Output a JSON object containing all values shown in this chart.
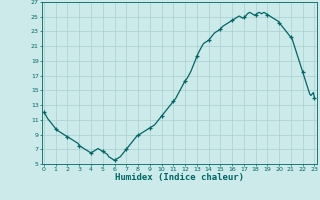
{
  "xlabel": "Humidex (Indice chaleur)",
  "ylabel": "",
  "bg_color": "#cceaea",
  "plot_bg_color": "#cceaea",
  "grid_color": "#aacece",
  "line_color": "#006666",
  "marker_color": "#006666",
  "xlim": [
    0,
    23
  ],
  "ylim": [
    5,
    27
  ],
  "yticks": [
    5,
    7,
    9,
    11,
    13,
    15,
    17,
    19,
    21,
    23,
    25,
    27
  ],
  "xticks": [
    0,
    1,
    2,
    3,
    4,
    5,
    6,
    7,
    8,
    9,
    10,
    11,
    12,
    13,
    14,
    15,
    16,
    17,
    18,
    19,
    20,
    21,
    22,
    23
  ],
  "humidex_x": [
    0,
    0.1,
    0.2,
    0.3,
    0.4,
    0.5,
    0.6,
    0.7,
    0.8,
    0.9,
    1.0,
    1.1,
    1.2,
    1.3,
    1.4,
    1.5,
    1.6,
    1.7,
    1.8,
    1.9,
    2.0,
    2.1,
    2.2,
    2.3,
    2.4,
    2.5,
    2.6,
    2.7,
    2.8,
    2.9,
    3.0,
    3.1,
    3.2,
    3.3,
    3.4,
    3.5,
    3.6,
    3.7,
    3.8,
    3.9,
    4.0,
    4.1,
    4.2,
    4.3,
    4.4,
    4.5,
    4.6,
    4.7,
    4.8,
    4.9,
    5.0,
    5.1,
    5.2,
    5.3,
    5.4,
    5.5,
    5.6,
    5.7,
    5.8,
    5.9,
    6.0,
    6.1,
    6.2,
    6.3,
    6.4,
    6.5,
    6.6,
    6.7,
    6.8,
    6.9,
    7.0,
    7.1,
    7.2,
    7.3,
    7.4,
    7.5,
    7.6,
    7.7,
    7.8,
    7.9,
    8.0,
    8.1,
    8.2,
    8.3,
    8.4,
    8.5,
    8.6,
    8.7,
    8.8,
    8.9,
    9.0,
    9.1,
    9.2,
    9.3,
    9.4,
    9.5,
    9.6,
    9.7,
    9.8,
    9.9,
    10.0,
    10.1,
    10.2,
    10.3,
    10.4,
    10.5,
    10.6,
    10.7,
    10.8,
    10.9,
    11.0,
    11.1,
    11.2,
    11.3,
    11.4,
    11.5,
    11.6,
    11.7,
    11.8,
    11.9,
    12.0,
    12.1,
    12.2,
    12.3,
    12.4,
    12.5,
    12.6,
    12.7,
    12.8,
    12.9,
    13.0,
    13.1,
    13.2,
    13.3,
    13.4,
    13.5,
    13.6,
    13.7,
    13.8,
    13.9,
    14.0,
    14.1,
    14.2,
    14.3,
    14.4,
    14.5,
    14.6,
    14.7,
    14.8,
    14.9,
    15.0,
    15.1,
    15.2,
    15.3,
    15.4,
    15.5,
    15.6,
    15.7,
    15.8,
    15.9,
    16.0,
    16.1,
    16.2,
    16.3,
    16.4,
    16.5,
    16.6,
    16.7,
    16.8,
    16.9,
    17.0,
    17.1,
    17.2,
    17.3,
    17.4,
    17.5,
    17.6,
    17.7,
    17.8,
    17.9,
    18.0,
    18.1,
    18.2,
    18.3,
    18.4,
    18.5,
    18.6,
    18.7,
    18.8,
    18.9,
    19.0,
    19.1,
    19.2,
    19.3,
    19.4,
    19.5,
    19.6,
    19.7,
    19.8,
    19.9,
    20.0,
    20.1,
    20.2,
    20.3,
    20.4,
    20.5,
    20.6,
    20.7,
    20.8,
    20.9,
    21.0,
    21.1,
    21.2,
    21.3,
    21.4,
    21.5,
    21.6,
    21.7,
    21.8,
    21.9,
    22.0,
    22.1,
    22.2,
    22.3,
    22.4,
    22.5,
    22.6,
    22.7,
    22.8,
    22.9,
    23.0
  ],
  "humidex_y": [
    12.0,
    11.8,
    11.5,
    11.2,
    11.0,
    10.8,
    10.6,
    10.4,
    10.2,
    10.0,
    9.8,
    9.6,
    9.5,
    9.4,
    9.3,
    9.2,
    9.1,
    9.0,
    8.9,
    8.8,
    8.7,
    8.6,
    8.5,
    8.4,
    8.3,
    8.2,
    8.1,
    8.0,
    7.9,
    7.8,
    7.5,
    7.4,
    7.3,
    7.2,
    7.1,
    7.0,
    6.9,
    6.8,
    6.7,
    6.6,
    6.5,
    6.6,
    6.7,
    6.8,
    6.9,
    7.0,
    7.1,
    7.0,
    6.9,
    6.8,
    6.7,
    6.6,
    6.5,
    6.4,
    6.3,
    6.0,
    5.9,
    5.8,
    5.7,
    5.6,
    5.5,
    5.6,
    5.7,
    5.8,
    5.9,
    6.0,
    6.2,
    6.4,
    6.6,
    6.8,
    7.0,
    7.2,
    7.4,
    7.6,
    7.8,
    8.0,
    8.2,
    8.4,
    8.6,
    8.8,
    8.9,
    9.0,
    9.1,
    9.2,
    9.3,
    9.4,
    9.5,
    9.6,
    9.7,
    9.8,
    9.9,
    10.0,
    10.1,
    10.2,
    10.3,
    10.5,
    10.7,
    10.9,
    11.1,
    11.3,
    11.5,
    11.7,
    11.9,
    12.1,
    12.3,
    12.5,
    12.7,
    12.9,
    13.1,
    13.3,
    13.5,
    13.7,
    13.9,
    14.2,
    14.5,
    14.8,
    15.1,
    15.4,
    15.7,
    16.0,
    16.3,
    16.5,
    16.7,
    17.0,
    17.3,
    17.6,
    18.0,
    18.4,
    18.8,
    19.2,
    19.6,
    20.0,
    20.3,
    20.6,
    20.9,
    21.2,
    21.4,
    21.5,
    21.6,
    21.7,
    21.8,
    22.0,
    22.2,
    22.4,
    22.6,
    22.8,
    22.9,
    23.0,
    23.1,
    23.2,
    23.3,
    23.5,
    23.7,
    23.8,
    23.9,
    24.0,
    24.1,
    24.2,
    24.3,
    24.4,
    24.5,
    24.6,
    24.7,
    24.8,
    24.9,
    25.0,
    25.1,
    25.0,
    24.9,
    24.8,
    24.9,
    25.0,
    25.2,
    25.4,
    25.5,
    25.6,
    25.5,
    25.4,
    25.3,
    25.2,
    25.3,
    25.4,
    25.5,
    25.6,
    25.5,
    25.4,
    25.5,
    25.6,
    25.5,
    25.4,
    25.3,
    25.2,
    25.1,
    25.0,
    24.9,
    24.8,
    24.7,
    24.6,
    24.5,
    24.4,
    24.2,
    24.0,
    23.8,
    23.6,
    23.4,
    23.2,
    23.0,
    22.8,
    22.6,
    22.4,
    22.2,
    22.0,
    21.5,
    21.0,
    20.5,
    20.0,
    19.5,
    19.0,
    18.5,
    18.0,
    17.5,
    17.0,
    16.5,
    16.0,
    15.5,
    15.0,
    14.5,
    14.3,
    14.5,
    14.7,
    14.0
  ],
  "marker_x": [
    0,
    1,
    2,
    3,
    4,
    5,
    6,
    7,
    8,
    9,
    10,
    11,
    12,
    13,
    14,
    15,
    16,
    17,
    18,
    19,
    20,
    21,
    22,
    23
  ],
  "marker_y": [
    12.0,
    9.8,
    8.7,
    7.5,
    6.5,
    6.7,
    5.5,
    7.0,
    8.9,
    9.9,
    11.5,
    13.5,
    16.3,
    19.6,
    21.8,
    23.3,
    24.5,
    24.9,
    25.3,
    25.3,
    24.2,
    22.2,
    17.5,
    14.0
  ]
}
